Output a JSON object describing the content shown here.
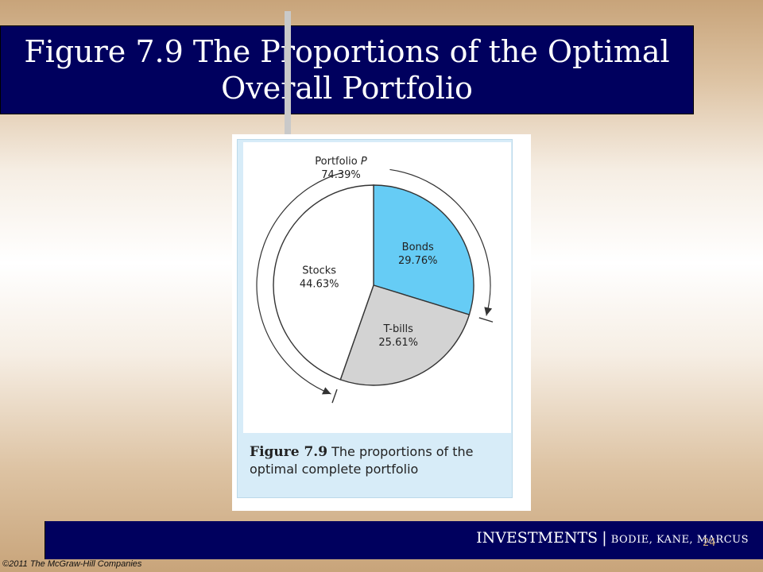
{
  "slide": {
    "title_line1": "Figure 7.9 The Proportions of the Optimal",
    "title_line2": "Overall Portfolio",
    "page_number": "24",
    "copyright": "©2011 The McGraw-Hill Companies"
  },
  "footer": {
    "investments": "INVESTMENTS",
    "separator": "|",
    "authors": "BODIE, KANE, MARCUS"
  },
  "caption": {
    "figure_label": "Figure 7.9",
    "text": "The proportions of the optimal complete portfolio"
  },
  "chart_data": {
    "type": "pie",
    "title": "",
    "slices": [
      {
        "name": "Bonds",
        "value": 29.76,
        "label": "29.76%",
        "color": "#66ccf5"
      },
      {
        "name": "T-bills",
        "value": 25.61,
        "label": "25.61%",
        "color": "#d3d3d3"
      },
      {
        "name": "Stocks",
        "value": 44.63,
        "label": "44.63%",
        "color": "#ffffff"
      }
    ],
    "annotation": {
      "name": "Portfolio",
      "name_italic": "P",
      "value": 74.39,
      "label": "74.39%"
    }
  }
}
